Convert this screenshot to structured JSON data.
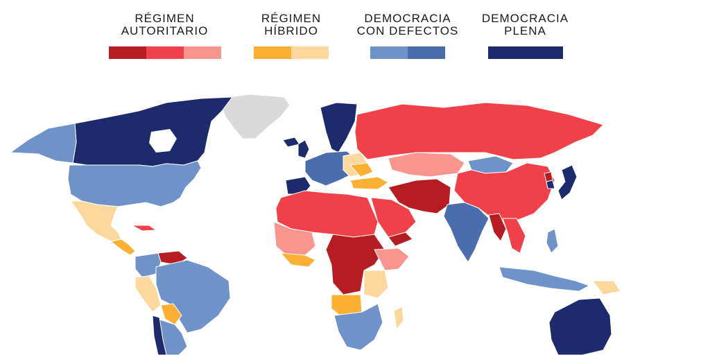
{
  "legend": [
    {
      "label": "RÉGIMEN\nAUTORITARIO",
      "colors": [
        "#b51d22",
        "#f0404a",
        "#f8958f"
      ]
    },
    {
      "label": "RÉGIMEN\nHÍBRIDO",
      "colors": [
        "#fbb033",
        "#fcd89e"
      ]
    },
    {
      "label": "DEMOCRACIA\nCON DEFECTOS",
      "colors": [
        "#6f93c9",
        "#4a6ead"
      ]
    },
    {
      "label": "DEMOCRACIA\nPLENA",
      "colors": [
        "#1d2a6b"
      ]
    }
  ],
  "colors": {
    "auth_dark": "#b51d22",
    "auth": "#f0404a",
    "auth_light": "#f8958f",
    "hybrid": "#fbb033",
    "hybrid_light": "#fcd89e",
    "flawed": "#6f93c9",
    "flawed_dark": "#4a6ead",
    "full": "#1d2a6b",
    "nodata": "#d9d9d9"
  }
}
